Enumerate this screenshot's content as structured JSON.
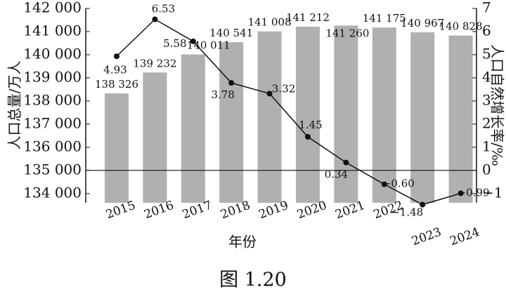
{
  "chart_data": {
    "type": "bar_line",
    "caption": "图 1.20",
    "y_label": "人口总量/万人",
    "y2_label": "人口自然增长率/‰",
    "x_label": "年份",
    "categories": [
      "2015",
      "2016",
      "2017",
      "2018",
      "2019",
      "2020",
      "2021",
      "2022",
      "2023",
      "2024"
    ],
    "series": [
      {
        "name": "人口总量",
        "type": "bar",
        "color": "#b0b0b0",
        "values": [
          138326,
          139232,
          140011,
          140541,
          141008,
          141212,
          141260,
          141175,
          140967,
          140828
        ],
        "value_labels": [
          "138 326",
          "139 232",
          "140 011",
          "140 541",
          "141 008",
          "141 212",
          "141 260",
          "141 175",
          "140 967",
          "140 828"
        ]
      },
      {
        "name": "人口自然增长率",
        "type": "line",
        "axis": "y2",
        "color": "#111111",
        "values": [
          4.93,
          6.53,
          5.58,
          3.78,
          3.32,
          1.45,
          0.34,
          -0.6,
          -1.48,
          -0.99
        ],
        "value_labels": [
          "4.93",
          "6.53",
          "5.58",
          "3.78",
          "3.32",
          "1.45",
          "0.34",
          "−0.60",
          "−1.48",
          "−0.99"
        ]
      }
    ],
    "ylim": [
      133600,
      142000
    ],
    "yticks": [
      {
        "value": 134000,
        "label": "134 000"
      },
      {
        "value": 135000,
        "label": "135 000"
      },
      {
        "value": 136000,
        "label": "136 000"
      },
      {
        "value": 137000,
        "label": "137 000"
      },
      {
        "value": 138000,
        "label": "138 000"
      },
      {
        "value": 139000,
        "label": "139 000"
      },
      {
        "value": 140000,
        "label": "140 000"
      },
      {
        "value": 141000,
        "label": "141 000"
      },
      {
        "value": 142000,
        "label": "142 000"
      }
    ],
    "y2lim": [
      -1.4,
      7
    ],
    "y2ticks": [
      {
        "value": -1,
        "label": "−1"
      },
      0,
      1,
      2,
      3,
      4,
      5,
      6,
      7
    ]
  }
}
